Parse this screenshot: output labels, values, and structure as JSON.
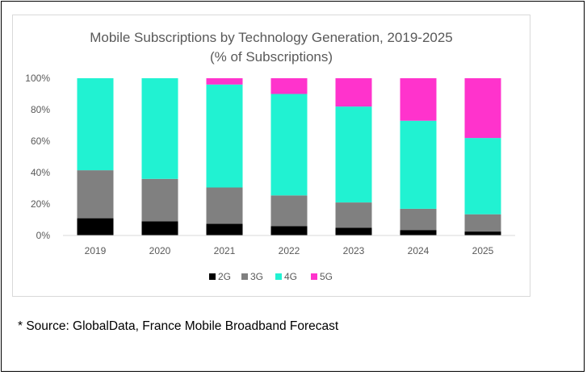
{
  "chart_data": {
    "type": "bar",
    "stacked": true,
    "title": "Mobile Subscriptions by Technology Generation, 2019-2025",
    "subtitle": "(% of Subscriptions)",
    "xlabel": "",
    "ylabel": "",
    "categories": [
      "2019",
      "2020",
      "2021",
      "2022",
      "2023",
      "2024",
      "2025"
    ],
    "ylim": [
      0,
      100
    ],
    "yticks": [
      0,
      20,
      40,
      60,
      80,
      100
    ],
    "ytick_labels": [
      "0%",
      "20%",
      "40%",
      "60%",
      "80%",
      "100%"
    ],
    "grid": false,
    "legend_position": "bottom",
    "series": [
      {
        "name": "2G",
        "color": "#000000",
        "values": [
          11,
          9,
          7.5,
          6,
          5,
          3.5,
          2.5
        ]
      },
      {
        "name": "3G",
        "color": "#808080",
        "values": [
          30.5,
          27,
          23,
          19.5,
          16,
          13.5,
          11
        ]
      },
      {
        "name": "4G",
        "color": "#21f2d2",
        "values": [
          58.5,
          64,
          65.5,
          64.5,
          61,
          56,
          48.5
        ]
      },
      {
        "name": "5G",
        "color": "#ff33cc",
        "values": [
          0,
          0,
          4,
          10,
          18,
          27,
          38
        ]
      }
    ]
  },
  "source_note": "* Source: GlobalData, France Mobile Broadband Forecast"
}
